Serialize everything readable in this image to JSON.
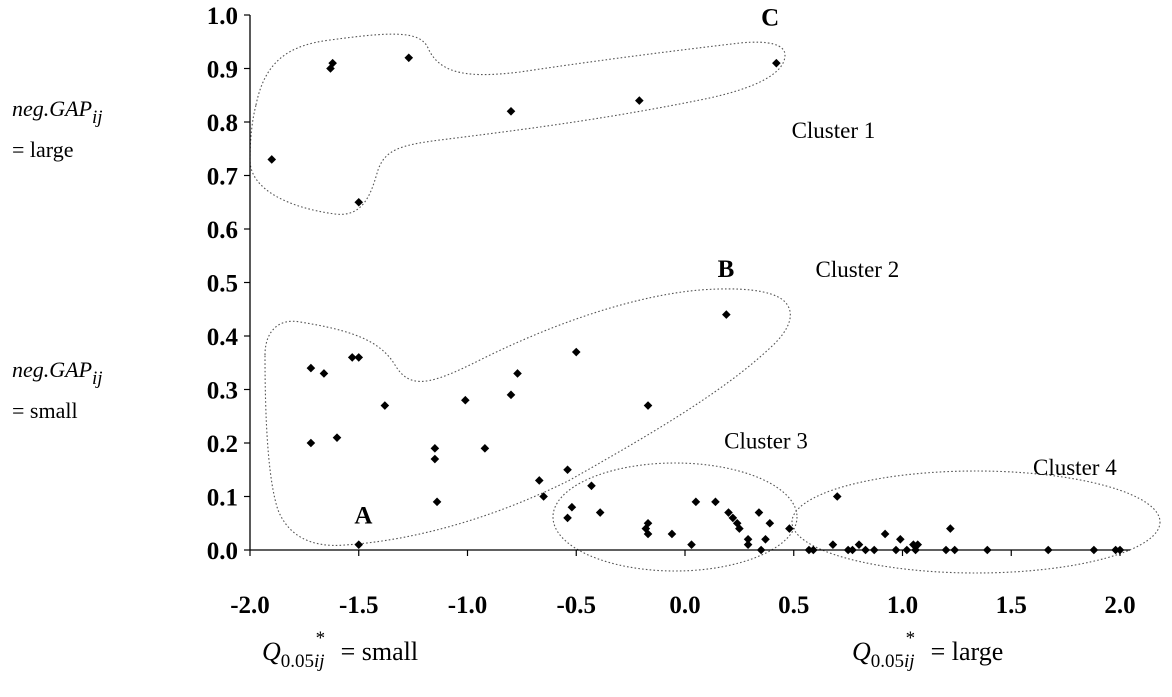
{
  "chart_data": {
    "type": "scatter",
    "title": "",
    "xlabel": "",
    "ylabel": "",
    "xlim": [
      -2.0,
      2.0
    ],
    "ylim": [
      0.0,
      1.0
    ],
    "x_ticks": [
      "-2.0",
      "-1.5",
      "-1.0",
      "-0.5",
      "0.0",
      "0.5",
      "1.0",
      "1.5",
      "2.0"
    ],
    "y_ticks": [
      "0.0",
      "0.1",
      "0.2",
      "0.3",
      "0.4",
      "0.5",
      "0.6",
      "0.7",
      "0.8",
      "0.9",
      "1.0"
    ],
    "grid": false,
    "marker": "diamond",
    "marker_color": "#000000",
    "points": [
      [
        -1.9,
        0.73
      ],
      [
        -1.63,
        0.9
      ],
      [
        -1.62,
        0.91
      ],
      [
        -1.27,
        0.92
      ],
      [
        -1.5,
        0.65
      ],
      [
        -0.8,
        0.82
      ],
      [
        -0.21,
        0.84
      ],
      [
        0.42,
        0.91
      ],
      [
        0.19,
        0.44
      ],
      [
        -0.5,
        0.37
      ],
      [
        -0.77,
        0.33
      ],
      [
        -0.8,
        0.29
      ],
      [
        -1.01,
        0.28
      ],
      [
        -0.17,
        0.27
      ],
      [
        -0.92,
        0.19
      ],
      [
        -1.53,
        0.36
      ],
      [
        -1.5,
        0.36
      ],
      [
        -1.72,
        0.34
      ],
      [
        -1.66,
        0.33
      ],
      [
        -1.38,
        0.27
      ],
      [
        -1.72,
        0.2
      ],
      [
        -1.6,
        0.21
      ],
      [
        -1.15,
        0.19
      ],
      [
        -1.15,
        0.17
      ],
      [
        -1.14,
        0.09
      ],
      [
        -1.5,
        0.01
      ],
      [
        -0.67,
        0.13
      ],
      [
        -0.65,
        0.1
      ],
      [
        -0.54,
        0.15
      ],
      [
        -0.43,
        0.12
      ],
      [
        -0.54,
        0.06
      ],
      [
        -0.52,
        0.08
      ],
      [
        -0.39,
        0.07
      ],
      [
        -0.18,
        0.04
      ],
      [
        -0.17,
        0.05
      ],
      [
        -0.17,
        0.03
      ],
      [
        -0.06,
        0.03
      ],
      [
        0.03,
        0.01
      ],
      [
        0.05,
        0.09
      ],
      [
        0.14,
        0.09
      ],
      [
        0.2,
        0.07
      ],
      [
        0.22,
        0.06
      ],
      [
        0.24,
        0.05
      ],
      [
        0.25,
        0.04
      ],
      [
        0.29,
        0.02
      ],
      [
        0.29,
        0.01
      ],
      [
        0.34,
        0.07
      ],
      [
        0.35,
        0.0
      ],
      [
        0.37,
        0.02
      ],
      [
        0.39,
        0.05
      ],
      [
        0.48,
        0.04
      ],
      [
        0.57,
        0.0
      ],
      [
        0.59,
        0.0
      ],
      [
        0.68,
        0.01
      ],
      [
        0.7,
        0.1
      ],
      [
        0.75,
        0.0
      ],
      [
        0.77,
        0.0
      ],
      [
        0.8,
        0.01
      ],
      [
        0.83,
        0.0
      ],
      [
        0.87,
        0.0
      ],
      [
        0.92,
        0.03
      ],
      [
        0.97,
        0.0
      ],
      [
        0.99,
        0.02
      ],
      [
        1.02,
        0.0
      ],
      [
        1.05,
        0.01
      ],
      [
        1.06,
        0.0
      ],
      [
        1.07,
        0.01
      ],
      [
        1.2,
        0.0
      ],
      [
        1.22,
        0.04
      ],
      [
        1.24,
        0.0
      ],
      [
        1.39,
        0.0
      ],
      [
        1.67,
        0.0
      ],
      [
        1.88,
        0.0
      ],
      [
        1.98,
        0.0
      ],
      [
        2.0,
        0.0
      ]
    ],
    "annotations": [
      {
        "text": "C",
        "x": 0.35,
        "y": 0.98
      },
      {
        "text": "B",
        "x": 0.15,
        "y": 0.51
      },
      {
        "text": "A",
        "x": -1.52,
        "y": 0.05
      }
    ],
    "clusters": [
      {
        "label": "Cluster 1",
        "label_x": 0.49,
        "label_y": 0.77
      },
      {
        "label": "Cluster 2",
        "label_x": 0.6,
        "label_y": 0.51
      },
      {
        "label": "Cluster 3",
        "label_x": 0.18,
        "label_y": 0.19
      },
      {
        "label": "Cluster 4",
        "label_x": 1.6,
        "label_y": 0.14
      }
    ]
  },
  "annotations_side": {
    "large_var": "neg.GAP",
    "large_sub": "ij",
    "large_eq": "= large",
    "small_var": "neg.GAP",
    "small_sub": "ij",
    "small_eq": "= small"
  },
  "annotations_bottom": {
    "q_var": "Q",
    "q_sup": "*",
    "q_sub_num": "0.05",
    "q_sub_idx": "ij",
    "small_text": " = small",
    "large_text": " = large"
  }
}
